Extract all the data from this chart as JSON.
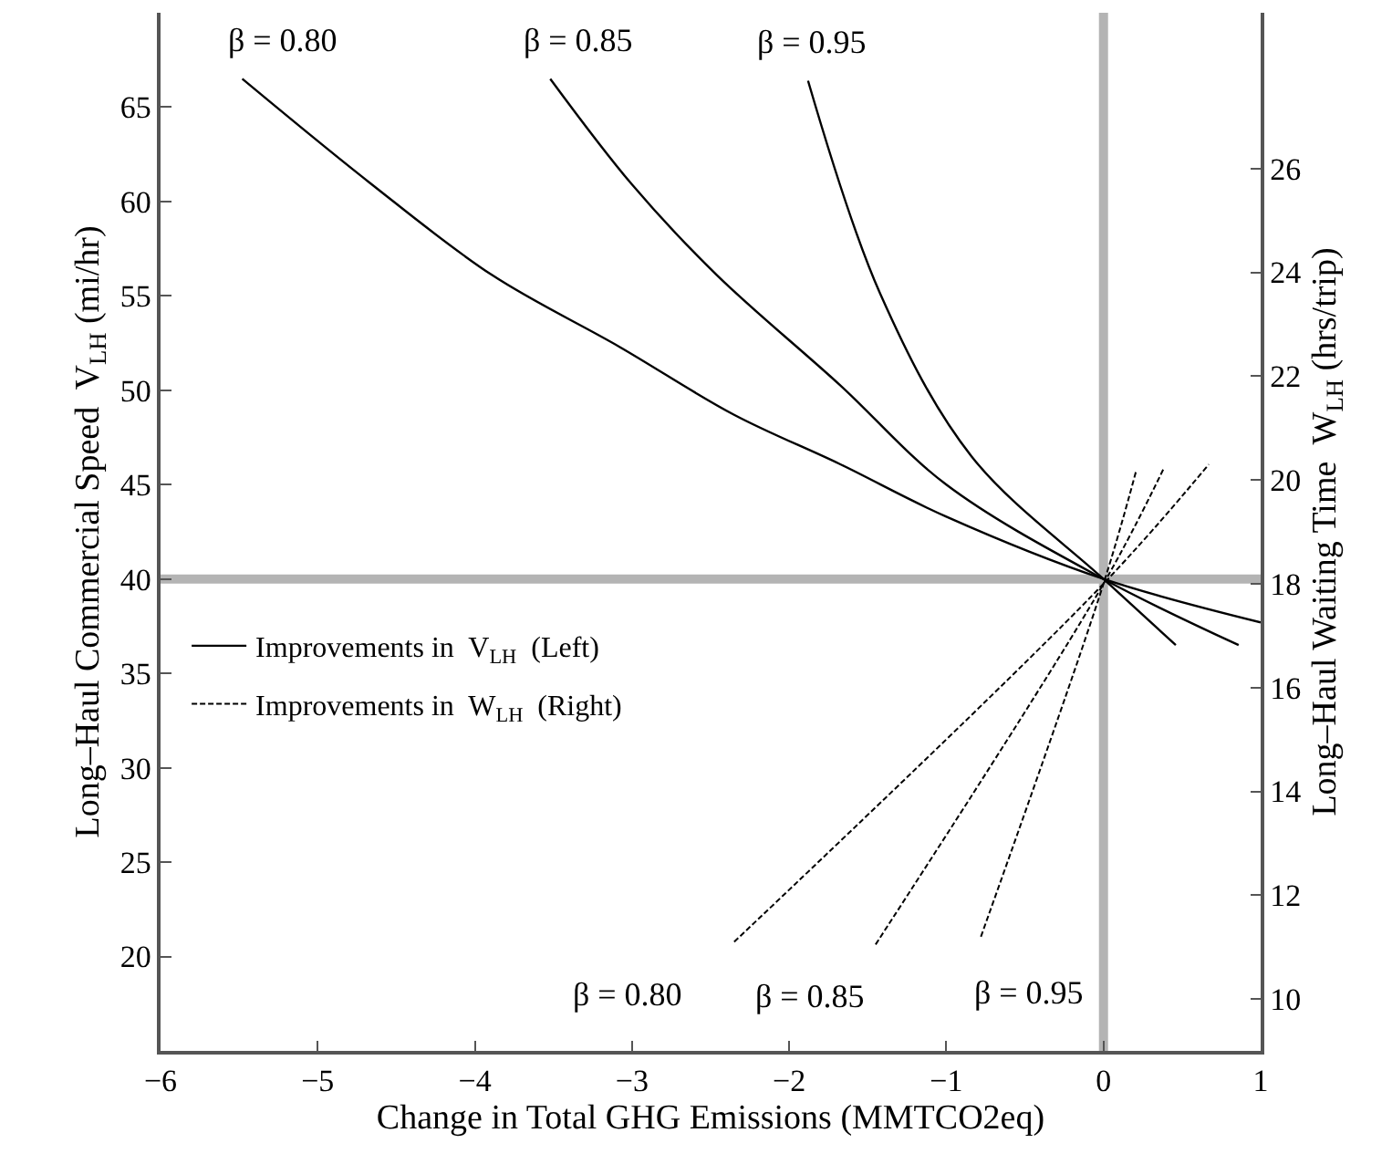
{
  "chart_data": {
    "type": "line",
    "xlabel": "Change in Total GHG Emissions (MMTCO2eq)",
    "ylabel": "Long–Haul Commercial Speed  V$_{LH}$ (mi/hr)",
    "y2label": "Long–Haul Waiting Time  W$_{LH}$ (hrs/trip)",
    "series": [
      {
        "name": "Improvements in  V$_{LH}$  (Left)",
        "color": "#000000",
        "line_style": "solid",
        "x": [
          -5.48,
          -4.67,
          -3.89,
          -3.08,
          -2.35,
          -1.68,
          -1.0,
          0,
          1.0
        ],
        "values": [
          66.5,
          61.0,
          56.1,
          52.3,
          48.7,
          46.1,
          43.3,
          40,
          37.7
        ]
      },
      {
        "color": "#000000",
        "line_style": "solid",
        "x": [
          -3.52,
          -3.0,
          -2.46,
          -1.68,
          -1.0,
          0,
          0.86
        ],
        "values": [
          66.5,
          60.9,
          56.1,
          50.3,
          45.0,
          40,
          36.5
        ]
      },
      {
        "color": "#000000",
        "line_style": "solid",
        "x": [
          -1.88,
          -1.42,
          -0.84,
          0,
          0.46
        ],
        "values": [
          66.4,
          55.1,
          46.5,
          40,
          36.5
        ]
      },
      {
        "name": "Improvements in  W$_{LH}$  (Right)",
        "color": "#000000",
        "line_style": "dashed",
        "axis": "y2",
        "x": [
          -2.35,
          0,
          0.67
        ],
        "values": [
          11.1,
          18,
          20.3
        ]
      },
      {
        "color": "#000000",
        "line_style": "dashed",
        "axis": "y2",
        "x": [
          -1.45,
          0,
          0.38
        ],
        "values": [
          11.05,
          18,
          20.2
        ]
      },
      {
        "color": "#000000",
        "line_style": "dashed",
        "axis": "y2",
        "x": [
          -0.78,
          0,
          0.21
        ],
        "values": [
          11.2,
          18,
          20.2
        ]
      }
    ],
    "xlim": [
      -6,
      1
    ],
    "xticks": [
      -6,
      -5,
      -4,
      -3,
      -2,
      -1,
      0,
      1
    ],
    "ylim": [
      15,
      70
    ],
    "yticks": [
      20,
      25,
      30,
      35,
      40,
      45,
      50,
      55,
      60,
      65
    ],
    "y2lim": [
      9,
      29
    ],
    "y2ticks": [
      10,
      12,
      14,
      16,
      18,
      20,
      22,
      24,
      26
    ],
    "ref_lines": [
      {
        "axis": "x",
        "value": 0,
        "color": "#b4b4b4"
      },
      {
        "axis": "y",
        "value": 40,
        "color": "#b4b4b4"
      }
    ],
    "annotations": [
      {
        "text": "β = 0.80",
        "x": -5.48,
        "y": 66.5
      },
      {
        "text": "β = 0.85",
        "x": -3.52,
        "y": 66.5
      },
      {
        "text": "β = 0.95",
        "x": -1.88,
        "y": 66.4
      },
      {
        "text": "β = 0.80",
        "x": -2.35,
        "y": 20.9
      },
      {
        "text": "β = 0.85",
        "x": -1.45,
        "y": 20.8
      },
      {
        "text": "β = 0.95",
        "x": -0.78,
        "y": 21.0
      }
    ],
    "legend": "left",
    "grid": false,
    "marker": "none"
  }
}
